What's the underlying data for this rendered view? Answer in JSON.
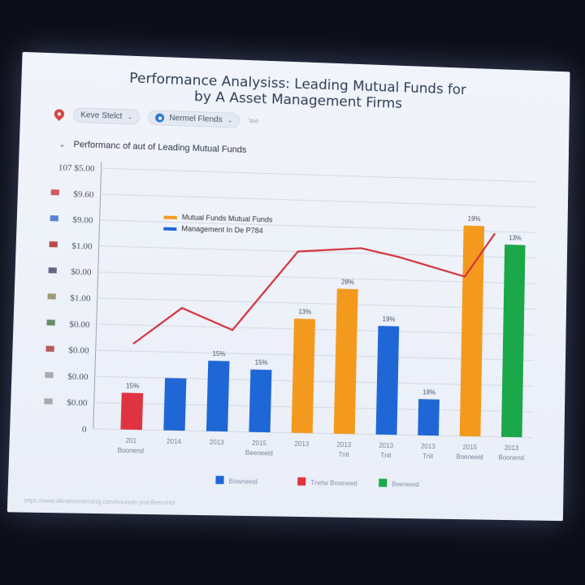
{
  "title_line1": "Performance Analysiss: Leading Mutual Funds for",
  "title_line2": "by A Asset Management Firms",
  "toolbar": {
    "select1_label": "Keve Stelct",
    "select2_label": "Nermel Flends",
    "extra": "ʼtee"
  },
  "subtitle": "Performanc of aut of Leading Mutual Funds",
  "colors": {
    "orange": "#f39a1e",
    "blue": "#1f67d6",
    "red": "#e03341",
    "green": "#1aa84a",
    "line": "#d4323c"
  },
  "chart_data": {
    "type": "bar",
    "y_tick_labels": [
      "107 $5.00",
      "$9.60",
      "$9.00",
      "$1.00",
      "$0.00",
      "$1.00",
      "$0.00",
      "$0.00",
      "$0.00",
      "$0.00",
      "0"
    ],
    "x_tick_labels": [
      "201",
      "2014",
      "2013",
      "2015",
      "2013",
      "2013",
      "2013",
      "2013",
      "2015",
      "2013"
    ],
    "x_tick_sublabels": [
      "Boonend",
      "",
      "",
      "Beeneeid",
      "",
      "Tnit",
      "Tnit",
      "Tnit",
      "Boeneeid",
      "Boonend"
    ],
    "ylim": [
      0,
      100
    ],
    "bars": [
      {
        "value": 14,
        "color": "red",
        "label": "15%"
      },
      {
        "value": 20,
        "color": "blue",
        "label": ""
      },
      {
        "value": 27,
        "color": "blue",
        "label": "15%"
      },
      {
        "value": 24,
        "color": "blue",
        "label": "15%"
      },
      {
        "value": 44,
        "color": "orange",
        "label": "13%"
      },
      {
        "value": 56,
        "color": "orange",
        "label": "28%"
      },
      {
        "value": 42,
        "color": "blue",
        "label": "19%"
      },
      {
        "value": 14,
        "color": "blue",
        "label": "18%"
      },
      {
        "value": 82,
        "color": "orange",
        "label": "19%"
      },
      {
        "value": 75,
        "color": "green",
        "label": "13%"
      }
    ],
    "line": {
      "points": [
        [
          0,
          33
        ],
        [
          1.1,
          47
        ],
        [
          2.3,
          39
        ],
        [
          3.8,
          70
        ],
        [
          5.3,
          72
        ],
        [
          6.2,
          69
        ],
        [
          7.8,
          62
        ],
        [
          8.5,
          79
        ]
      ]
    },
    "legend_top": [
      {
        "label": "Mutual Funds Mutual Funds",
        "color": "orange"
      },
      {
        "label": "Management In De P784",
        "color": "blue"
      }
    ],
    "legend_bottom": [
      {
        "label": "Bowneeid",
        "color": "blue"
      },
      {
        "label": "Tnetw Bowneed",
        "color": "red"
      },
      {
        "label": "Beeneeid",
        "color": "green"
      }
    ]
  },
  "footer": "ettps://www.sllinatiurmorminig.com/insureds-ynd-ffeers/Hsl"
}
